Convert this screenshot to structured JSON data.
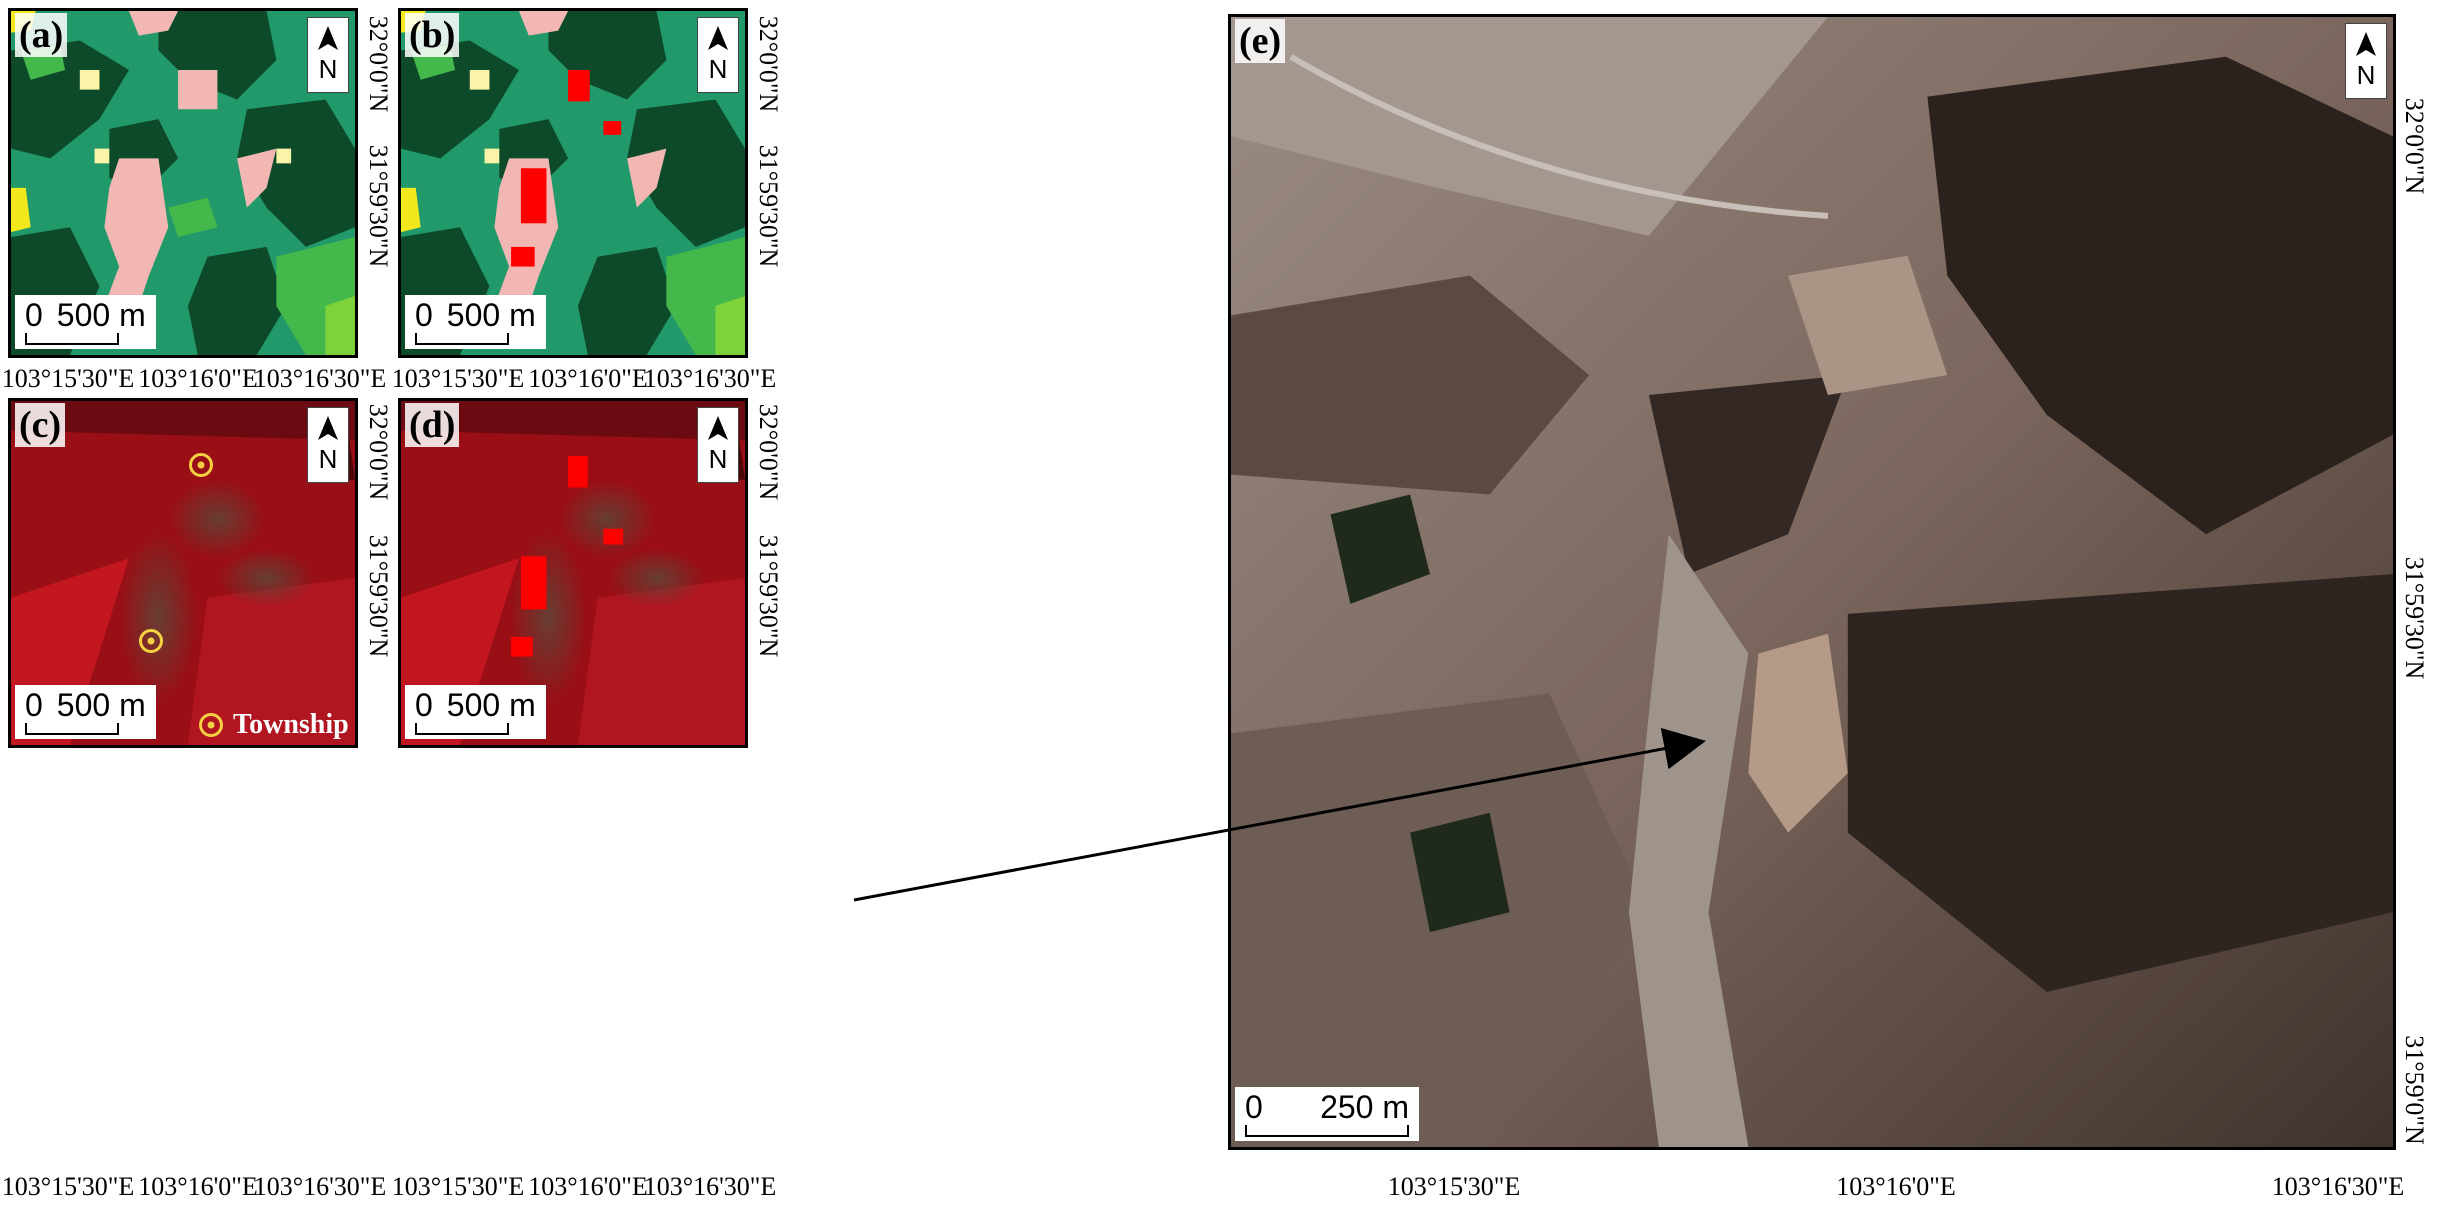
{
  "panels": {
    "a": {
      "label": "(a)",
      "scale": {
        "zero": "0",
        "dist": "500 m"
      }
    },
    "b": {
      "label": "(b)",
      "scale": {
        "zero": "0",
        "dist": "500 m"
      }
    },
    "c": {
      "label": "(c)",
      "scale": {
        "zero": "0",
        "dist": "500 m"
      },
      "legend": "Township"
    },
    "d": {
      "label": "(d)",
      "scale": {
        "zero": "0",
        "dist": "500 m"
      }
    },
    "e": {
      "label": "(e)",
      "scale": {
        "zero": "0",
        "dist": "250 m"
      }
    }
  },
  "north_arrow": {
    "letter": "N"
  },
  "x_ticks_small": [
    "103°15'30\"E",
    "103°16'0\"E",
    "103°16'30\"E"
  ],
  "y_ticks_small": [
    "32°0'0\"N",
    "31°59'30\"N"
  ],
  "x_ticks_e": [
    "103°15'30\"E",
    "103°16'0\"E",
    "103°16'30\"E"
  ],
  "y_ticks_e": [
    "32°0'0\"N",
    "31°59'30\"N",
    "31°59'0\"N"
  ],
  "colors": {
    "forest_dark": "#0d4a2a",
    "forest_mid": "#22996a",
    "forest_light": "#33cc92",
    "grass": "#44b84a",
    "shrub": "#7fd33a",
    "builtup": "#f2b7b3",
    "farmland": "#fbf3a8",
    "bare": "#f2e81c",
    "extracted": "#ff0000",
    "township": "#f5d142"
  },
  "icons": {
    "north": "north-arrow-icon",
    "township": "township-marker-icon"
  }
}
